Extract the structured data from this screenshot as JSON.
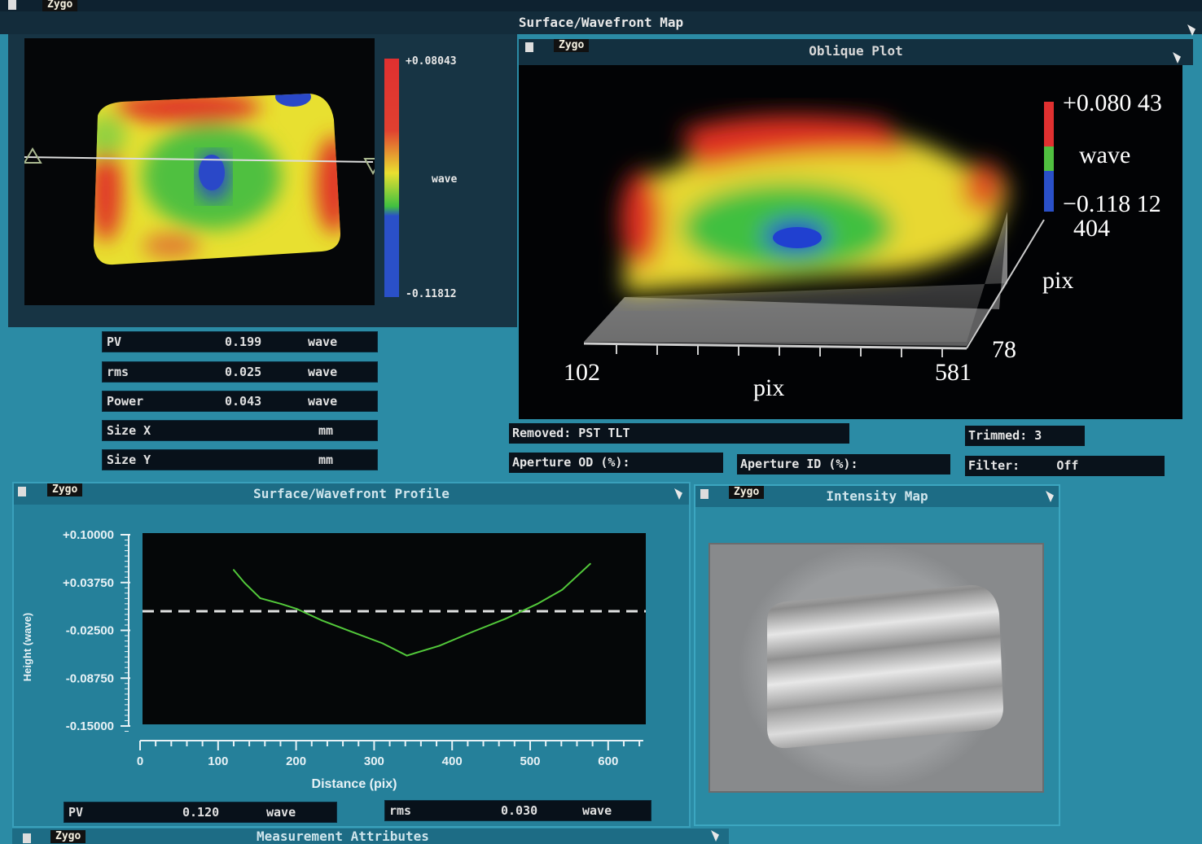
{
  "app": {
    "logo": "Zygo"
  },
  "surface_map": {
    "title": "Surface/Wavefront Map",
    "colorbar": {
      "max": "+0.08043",
      "unit": "wave",
      "min": "-0.11812"
    },
    "colors": {
      "high": "#e03030",
      "mid": "#e9e030",
      "low_mid": "#40c040",
      "low": "#2a50c8"
    },
    "stats": [
      {
        "label": "PV",
        "value": "0.199",
        "unit": "wave"
      },
      {
        "label": "rms",
        "value": "0.025",
        "unit": "wave"
      },
      {
        "label": "Power",
        "value": "0.043",
        "unit": "wave"
      },
      {
        "label": "Size X",
        "value": "",
        "unit": "mm"
      },
      {
        "label": "Size Y",
        "value": "",
        "unit": "mm"
      }
    ]
  },
  "oblique": {
    "title": "Oblique Plot",
    "scale_max": "+0.080 43",
    "unit": "wave",
    "scale_min": "−0.118 12",
    "x_start": "102",
    "x_end": "581",
    "x_label": "pix",
    "y_start": "78",
    "y_end": "404",
    "y_label": "pix"
  },
  "info": {
    "removed": "Removed: PST TLT",
    "trimmed": "Trimmed:  3",
    "aperture_od": "Aperture OD (%):",
    "aperture_id": "Aperture ID (%):",
    "filter": "Filter:     Off"
  },
  "profile": {
    "title": "Surface/Wavefront Profile",
    "pv": {
      "label": "PV",
      "value": "0.120",
      "unit": "wave"
    },
    "rms": {
      "label": "rms",
      "value": "0.030",
      "unit": "wave"
    }
  },
  "chart_data": {
    "type": "line",
    "title": "",
    "xlabel": "Distance (pix)",
    "ylabel": "Height (wave)",
    "xlim": [
      0,
      645
    ],
    "ylim": [
      -0.15,
      0.1
    ],
    "x_ticks": [
      "0",
      "100",
      "200",
      "300",
      "400",
      "500",
      "600"
    ],
    "y_ticks": [
      "+0.10000",
      "+0.03750",
      "-0.02500",
      "-0.08750",
      "-0.15000"
    ],
    "reference_line": 0.0,
    "line_color": "#52c83a",
    "x": [
      120,
      134,
      154,
      181,
      201,
      233,
      269,
      311,
      342,
      384,
      426,
      468,
      509,
      541,
      577
    ],
    "y": [
      0.054,
      0.037,
      0.017,
      0.0095,
      0.003,
      -0.012,
      -0.026,
      -0.042,
      -0.058,
      -0.045,
      -0.027,
      -0.01,
      0.0095,
      0.028,
      0.062
    ]
  },
  "intensity": {
    "title": "Intensity Map"
  },
  "measurement": {
    "title": "Measurement Attributes"
  }
}
